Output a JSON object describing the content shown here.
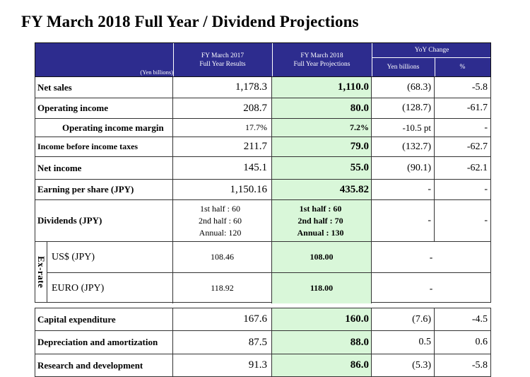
{
  "title": "FY March 2018 Full Year / Dividend Projections",
  "header": {
    "unit": "(Yen billions)",
    "col_fy2017_line1": "FY March 2017",
    "col_fy2017_line2": "Full Year Results",
    "col_fy2018_line1": "FY March 2018",
    "col_fy2018_line2": "Full Year Projections",
    "col_yoy": "YoY Change",
    "col_yen": "Yen billions",
    "col_pct": "%"
  },
  "rows": [
    {
      "label": "Net sales",
      "fy2017": "1,178.3",
      "fy2018": "1,110.0",
      "yen": "(68.3)",
      "pct": "-5.8"
    },
    {
      "label": "Operating income",
      "fy2017": "208.7",
      "fy2018": "80.0",
      "yen": "(128.7)",
      "pct": "-61.7"
    },
    {
      "label": "Operating income margin",
      "fy2017": "17.7%",
      "fy2018": "7.2%",
      "yen": "-10.5 pt",
      "pct": "-"
    },
    {
      "label": "Income before income taxes",
      "fy2017": "211.7",
      "fy2018": "79.0",
      "yen": "(132.7)",
      "pct": "-62.7"
    },
    {
      "label": "Net income",
      "fy2017": "145.1",
      "fy2018": "55.0",
      "yen": "(90.1)",
      "pct": "-62.1"
    },
    {
      "label": "Earning per share (JPY)",
      "fy2017": "1,150.16",
      "fy2018": "435.82",
      "yen": "-",
      "pct": "-"
    }
  ],
  "dividends": {
    "label": "Dividends (JPY)",
    "fy2017": [
      "1st half : 60",
      "2nd half : 60",
      "Annual: 120"
    ],
    "fy2018": [
      "1st half : 60",
      "2nd half : 70",
      "Annual : 130"
    ],
    "yen": "-",
    "pct": "-"
  },
  "exrate": {
    "label": "Ex-rate",
    "rows": [
      {
        "label": "US$ (JPY)",
        "fy2017": "108.46",
        "fy2018": "108.00",
        "change": "-"
      },
      {
        "label": "EURO (JPY)",
        "fy2017": "118.92",
        "fy2018": "118.00",
        "change": "-"
      }
    ]
  },
  "bottom_rows": [
    {
      "label": "Capital expenditure",
      "fy2017": "167.6",
      "fy2018": "160.0",
      "yen": "(7.6)",
      "pct": "-4.5"
    },
    {
      "label": "Depreciation and amortization",
      "fy2017": "87.5",
      "fy2018": "88.0",
      "yen": "0.5",
      "pct": "0.6"
    },
    {
      "label": "Research and development",
      "fy2017": "91.3",
      "fy2018": "86.0",
      "yen": "(5.3)",
      "pct": "-5.8"
    }
  ],
  "colors": {
    "header_bg": "#2d2c8e",
    "projection_bg": "#d9f7d9"
  }
}
